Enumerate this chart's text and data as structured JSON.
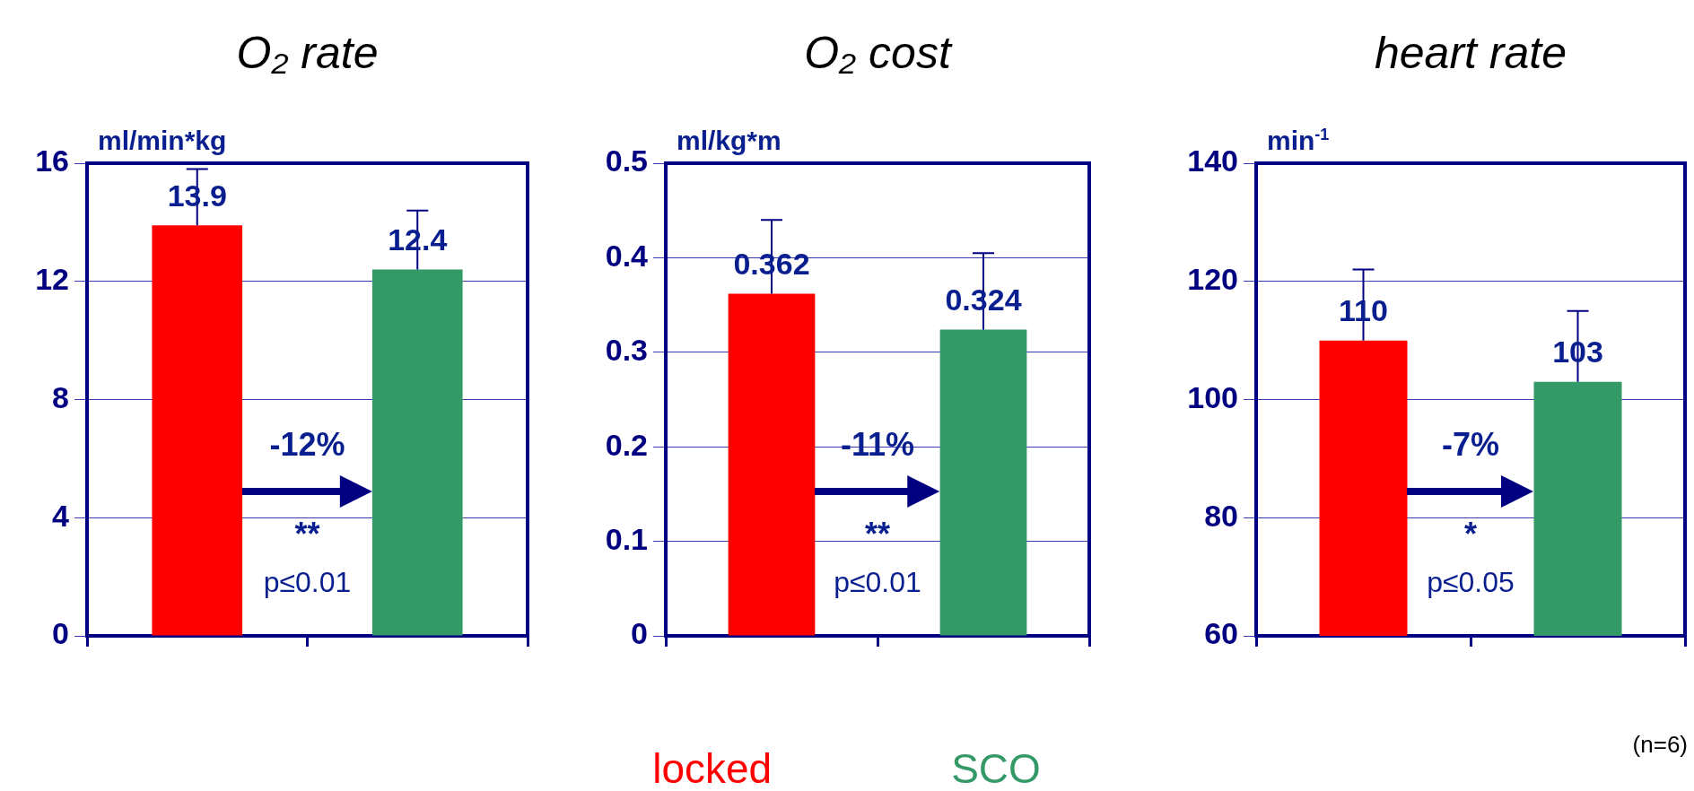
{
  "chart_data": [
    {
      "type": "bar",
      "title": "O₂ rate",
      "ylabel": "ml/min*kg",
      "categories": [
        null,
        null
      ],
      "series": [
        {
          "color": "#ff0000",
          "values": [
            13.9,
            null
          ],
          "errors": [
            [
              13.9,
              15.8
            ],
            null
          ]
        },
        {
          "color": "#339966",
          "values": [
            null,
            12.4
          ],
          "errors": [
            null,
            [
              12.4,
              14.4
            ]
          ]
        }
      ],
      "ylim": [
        0,
        16
      ],
      "yticks": [
        0,
        4,
        8,
        12,
        16
      ],
      "grid": "y",
      "data_labels": true,
      "annotations": [
        "-12%",
        "**",
        "p≤0.01"
      ]
    },
    {
      "type": "bar",
      "title": "O₂ cost",
      "ylabel": "ml/kg*m",
      "categories": [
        null,
        null
      ],
      "series": [
        {
          "name": "locked",
          "color": "#ff0000",
          "values": [
            0.362,
            null
          ],
          "errors": [
            [
              0.362,
              0.44
            ],
            null
          ]
        },
        {
          "name": "SCO",
          "color": "#339966",
          "values": [
            null,
            0.324
          ],
          "errors": [
            null,
            [
              0.324,
              0.405
            ]
          ]
        }
      ],
      "ylim": [
        0,
        0.5
      ],
      "yticks": [
        0,
        0.1,
        0.2,
        0.3,
        0.4,
        0.5
      ],
      "grid": "y",
      "data_labels": true,
      "legend": "bottom",
      "annotations": [
        "-11%",
        "**",
        "p≤0.01"
      ]
    },
    {
      "type": "bar",
      "title": "heart rate",
      "ylabel": "min$^{-1}$",
      "categories": [
        null,
        null
      ],
      "series": [
        {
          "color": "#ff0000",
          "values": [
            110,
            null
          ],
          "errors": [
            [
              110,
              122
            ],
            null
          ]
        },
        {
          "color": "#339966",
          "values": [
            null,
            103
          ],
          "errors": [
            null,
            [
              103,
              115
            ]
          ]
        }
      ],
      "ylim": [
        60,
        140
      ],
      "yticks": [
        60,
        80,
        100,
        120,
        140
      ],
      "grid": "y",
      "data_labels": true,
      "annotations": [
        "-7%",
        "*",
        "p≤0.05",
        "(n=6)"
      ]
    }
  ]
}
